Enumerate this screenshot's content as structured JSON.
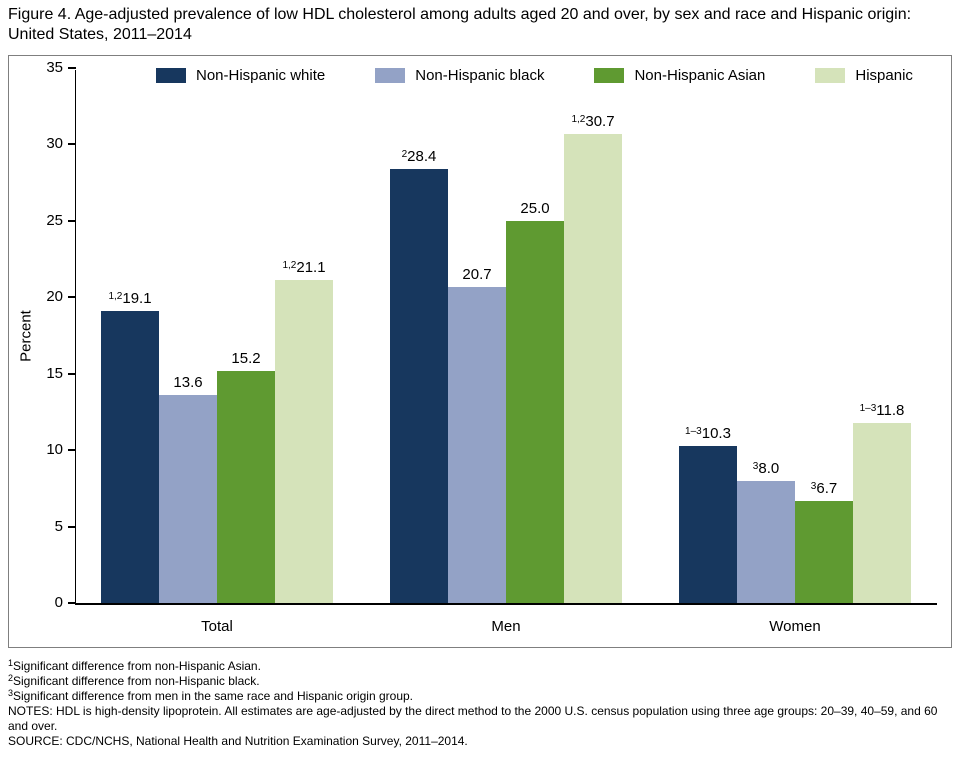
{
  "figure": {
    "title": "Figure 4. Age-adjusted prevalence of low HDL cholesterol among adults aged 20 and over, by sex and race and Hispanic origin: United States, 2011–2014"
  },
  "chart_data": {
    "type": "bar",
    "categories": [
      "Total",
      "Men",
      "Women"
    ],
    "series": [
      {
        "name": "Non-Hispanic white",
        "color": "#17375e",
        "values": [
          19.1,
          28.4,
          10.3
        ],
        "labels": [
          "19.1",
          "28.4",
          "10.3"
        ],
        "sups": [
          "1,2",
          "2",
          "1–3"
        ]
      },
      {
        "name": "Non-Hispanic black",
        "color": "#93a2c6",
        "values": [
          13.6,
          20.7,
          8.0
        ],
        "labels": [
          "13.6",
          "20.7",
          "8.0"
        ],
        "sups": [
          "",
          "",
          "3"
        ]
      },
      {
        "name": "Non-Hispanic Asian",
        "color": "#5f9a31",
        "values": [
          15.2,
          25.0,
          6.7
        ],
        "labels": [
          "15.2",
          "25.0",
          "6.7"
        ],
        "sups": [
          "",
          "",
          "3"
        ]
      },
      {
        "name": "Hispanic",
        "color": "#d5e3ba",
        "values": [
          21.1,
          30.7,
          11.8
        ],
        "labels": [
          "21.1",
          "30.7",
          "11.8"
        ],
        "sups": [
          "1,2",
          "1,2",
          "1–3"
        ]
      }
    ],
    "title": "Age-adjusted prevalence of low HDL cholesterol among adults aged 20 and over, by sex and race and Hispanic origin: United States, 2011–2014",
    "xlabel": "",
    "ylabel": "Percent",
    "ylim": [
      0,
      35
    ],
    "ytick_step": 5,
    "grid": false,
    "legend_position": "top"
  },
  "footnotes": [
    {
      "sup": "1",
      "text": "Significant difference from non-Hispanic Asian."
    },
    {
      "sup": "2",
      "text": "Significant difference from non-Hispanic black."
    },
    {
      "sup": "3",
      "text": "Significant difference from men in the same race and Hispanic origin group."
    },
    {
      "sup": "",
      "text": "NOTES: HDL is high-density lipoprotein. All estimates are age-adjusted by the direct method to the 2000 U.S. census population using three age groups: 20–39, 40–59, and 60 and over."
    },
    {
      "sup": "",
      "text": "SOURCE: CDC/NCHS, National Health and Nutrition Examination Survey, 2011–2014."
    }
  ]
}
